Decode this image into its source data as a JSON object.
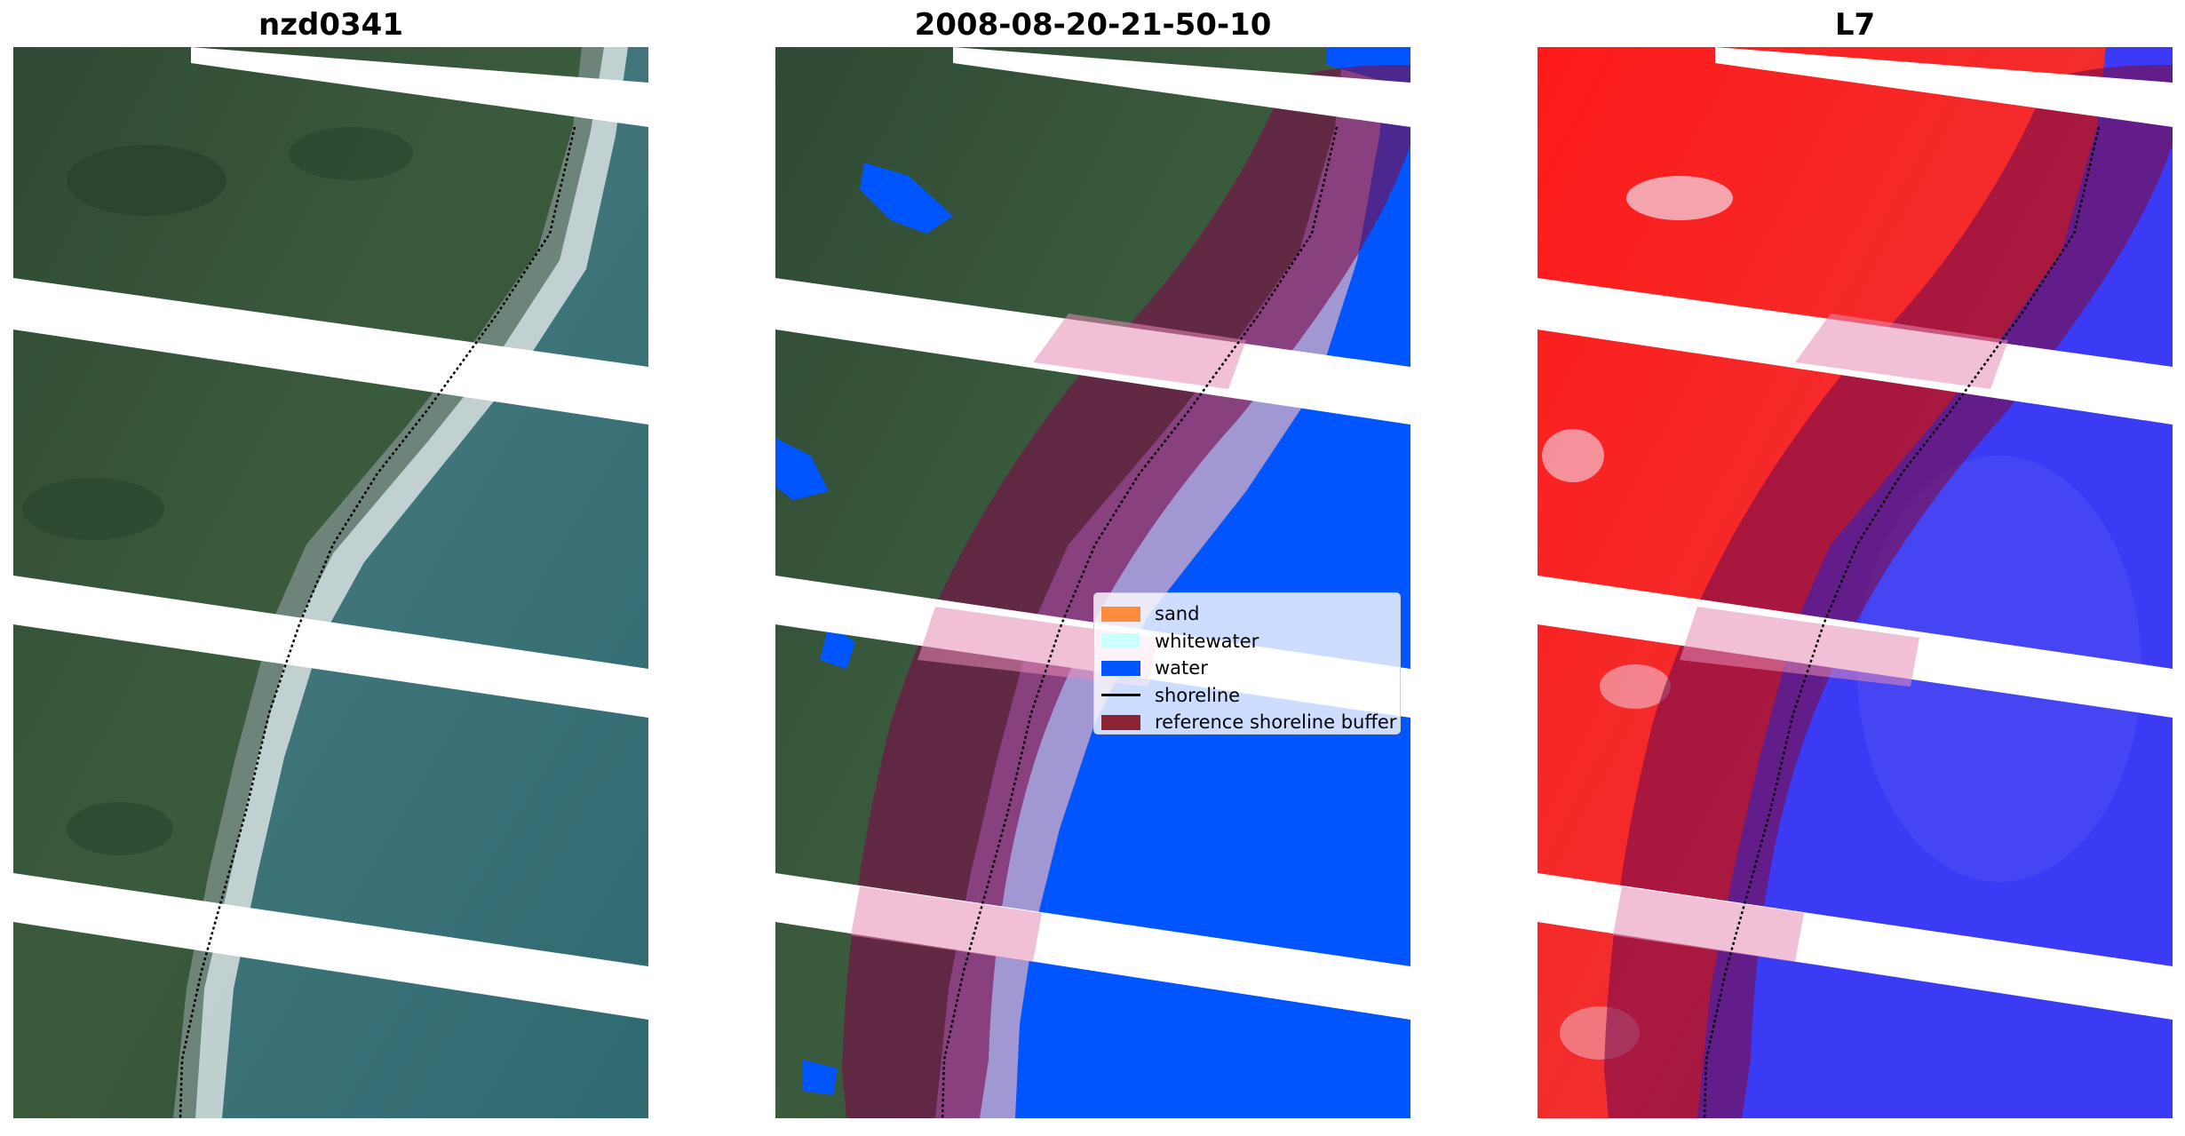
{
  "panels": [
    {
      "title": "nzd0341",
      "view": "true-color satellite image"
    },
    {
      "title": "2008-08-20-21-50-10",
      "view": "classified image"
    },
    {
      "title": "L7",
      "view": "water index image"
    }
  ],
  "legend": {
    "items": [
      {
        "label": "sand",
        "color": "#ff8c3c",
        "kind": "patch"
      },
      {
        "label": "whitewater",
        "color": "#ccffff",
        "kind": "patch"
      },
      {
        "label": "water",
        "color": "#0055ff",
        "kind": "patch"
      },
      {
        "label": "shoreline",
        "color": "#000000",
        "kind": "line"
      },
      {
        "label": "reference shoreline buffer",
        "color": "#8b2332",
        "kind": "patch"
      }
    ]
  }
}
